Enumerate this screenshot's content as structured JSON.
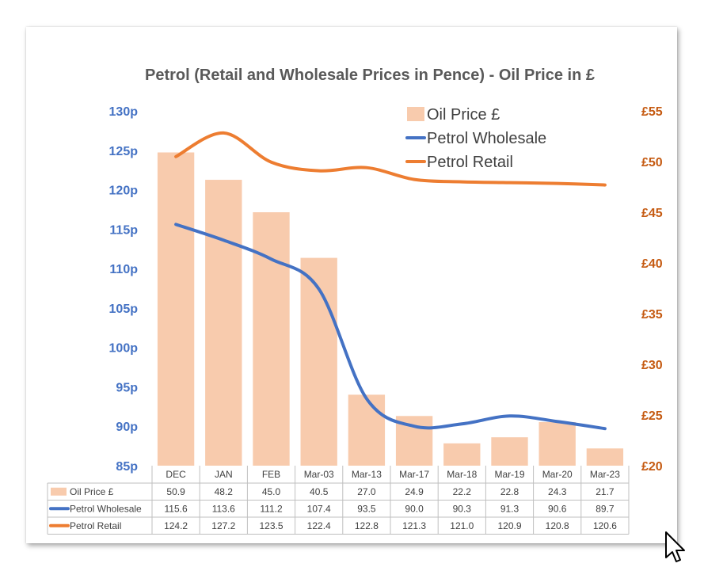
{
  "chart_data": {
    "type": "bar+line (combo, dual axis)",
    "title": "Petrol (Retail and Wholesale Prices in Pence) - Oil Price in £",
    "categories": [
      "DEC",
      "JAN",
      "FEB",
      "Mar-03",
      "Mar-13",
      "Mar-17",
      "Mar-18",
      "Mar-19",
      "Mar-20",
      "Mar-23"
    ],
    "left_axis": {
      "range": [
        85,
        130
      ],
      "step": 5,
      "ticks": [
        "85p",
        "90p",
        "95p",
        "100p",
        "105p",
        "110p",
        "115p",
        "120p",
        "125p",
        "130p"
      ]
    },
    "right_axis": {
      "range": [
        20,
        55
      ],
      "step": 5,
      "ticks": [
        "£20",
        "£25",
        "£30",
        "£35",
        "£40",
        "£45",
        "£50",
        "£55"
      ]
    },
    "series": [
      {
        "name": "Oil Price £",
        "type": "bar",
        "axis": "right",
        "color": "#F8CBAD",
        "values": [
          50.9,
          48.2,
          45.0,
          40.5,
          27.0,
          24.9,
          22.2,
          22.8,
          24.3,
          21.7
        ],
        "labels": [
          "50.9",
          "48.2",
          "45.0",
          "40.5",
          "27.0",
          "24.9",
          "22.2",
          "22.8",
          "24.3",
          "21.7"
        ]
      },
      {
        "name": "Petrol Wholesale",
        "type": "line",
        "axis": "left",
        "color": "#4472C4",
        "values": [
          115.6,
          113.6,
          111.2,
          107.4,
          93.5,
          90.0,
          90.3,
          91.3,
          90.6,
          89.7
        ],
        "labels": [
          "115.6",
          "113.6",
          "111.2",
          "107.4",
          "93.5",
          "90.0",
          "90.3",
          "91.3",
          "90.6",
          "89.7"
        ]
      },
      {
        "name": "Petrol Retail",
        "type": "line",
        "axis": "left",
        "color": "#ED7D31",
        "values": [
          124.2,
          127.2,
          123.5,
          122.4,
          122.8,
          121.3,
          121.0,
          120.9,
          120.8,
          120.6
        ],
        "labels": [
          "124.2",
          "127.2",
          "123.5",
          "122.4",
          "122.8",
          "121.3",
          "121.0",
          "120.9",
          "120.8",
          "120.6"
        ]
      }
    ],
    "legend": "top-right",
    "data_table": true,
    "colors": {
      "left_axis": "#4472C4",
      "right_axis": "#C55A11",
      "title": "#595959",
      "grid": "#BFBFBF"
    }
  }
}
